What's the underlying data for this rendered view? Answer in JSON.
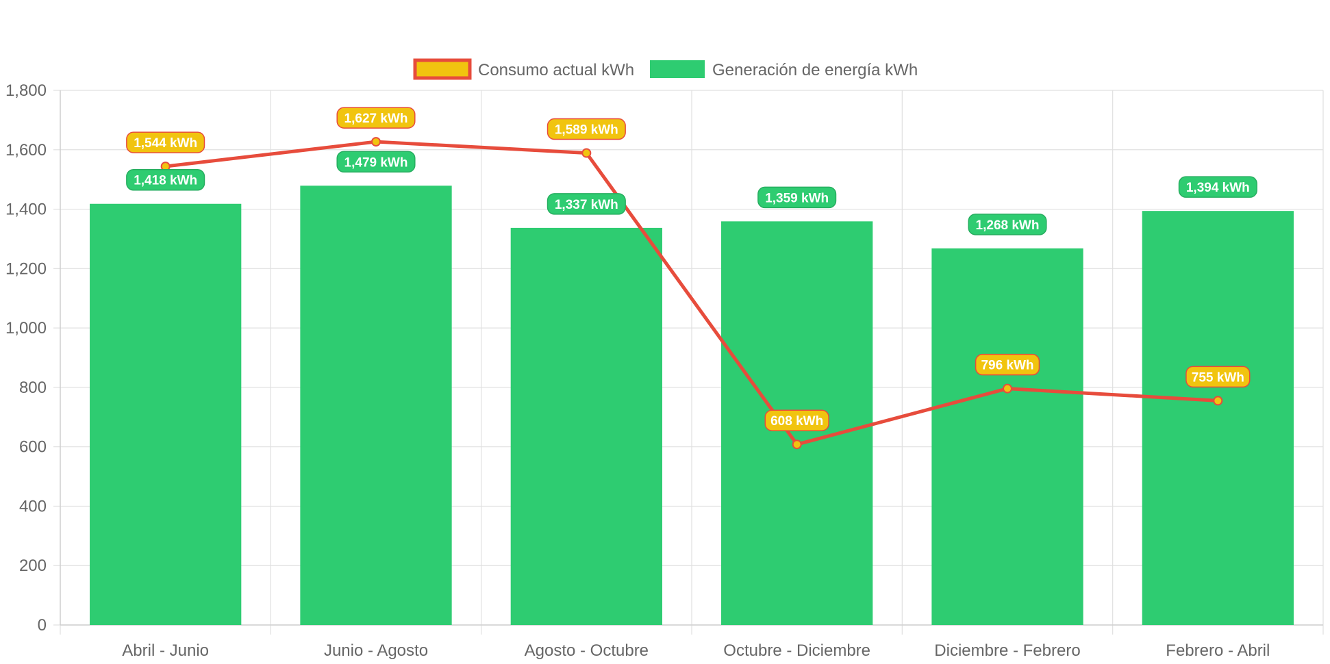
{
  "chart_data": {
    "type": "bar",
    "title": "",
    "xlabel": "",
    "ylabel": "",
    "categories": [
      "Abril - Junio",
      "Junio - Agosto",
      "Agosto - Octubre",
      "Octubre - Diciembre",
      "Diciembre - Febrero",
      "Febrero - Abril"
    ],
    "ylim": [
      0,
      1800
    ],
    "yticks": [
      0,
      200,
      400,
      600,
      800,
      1000,
      1200,
      1400,
      1600,
      1800
    ],
    "ytick_labels": [
      "0",
      "200",
      "400",
      "600",
      "800",
      "1,000",
      "1,200",
      "1,400",
      "1,600",
      "1,800"
    ],
    "grid": true,
    "legend_position": "top",
    "series": [
      {
        "name": "Consumo actual kWh",
        "type": "line",
        "values": [
          1544,
          1627,
          1589,
          608,
          796,
          755
        ],
        "labels": [
          "1,544 kWh",
          "1,627 kWh",
          "1,589 kWh",
          "608 kWh",
          "796 kWh",
          "755 kWh"
        ],
        "color": "#e74c3c",
        "fill_color": "#f1c40f"
      },
      {
        "name": "Generación de energía kWh",
        "type": "bar",
        "values": [
          1418,
          1479,
          1337,
          1359,
          1268,
          1394
        ],
        "labels": [
          "1,418 kWh",
          "1,479 kWh",
          "1,337 kWh",
          "1,359 kWh",
          "1,268 kWh",
          "1,394 kWh"
        ],
        "color": "#2ecc71",
        "border_color": "#27ae60"
      }
    ]
  }
}
